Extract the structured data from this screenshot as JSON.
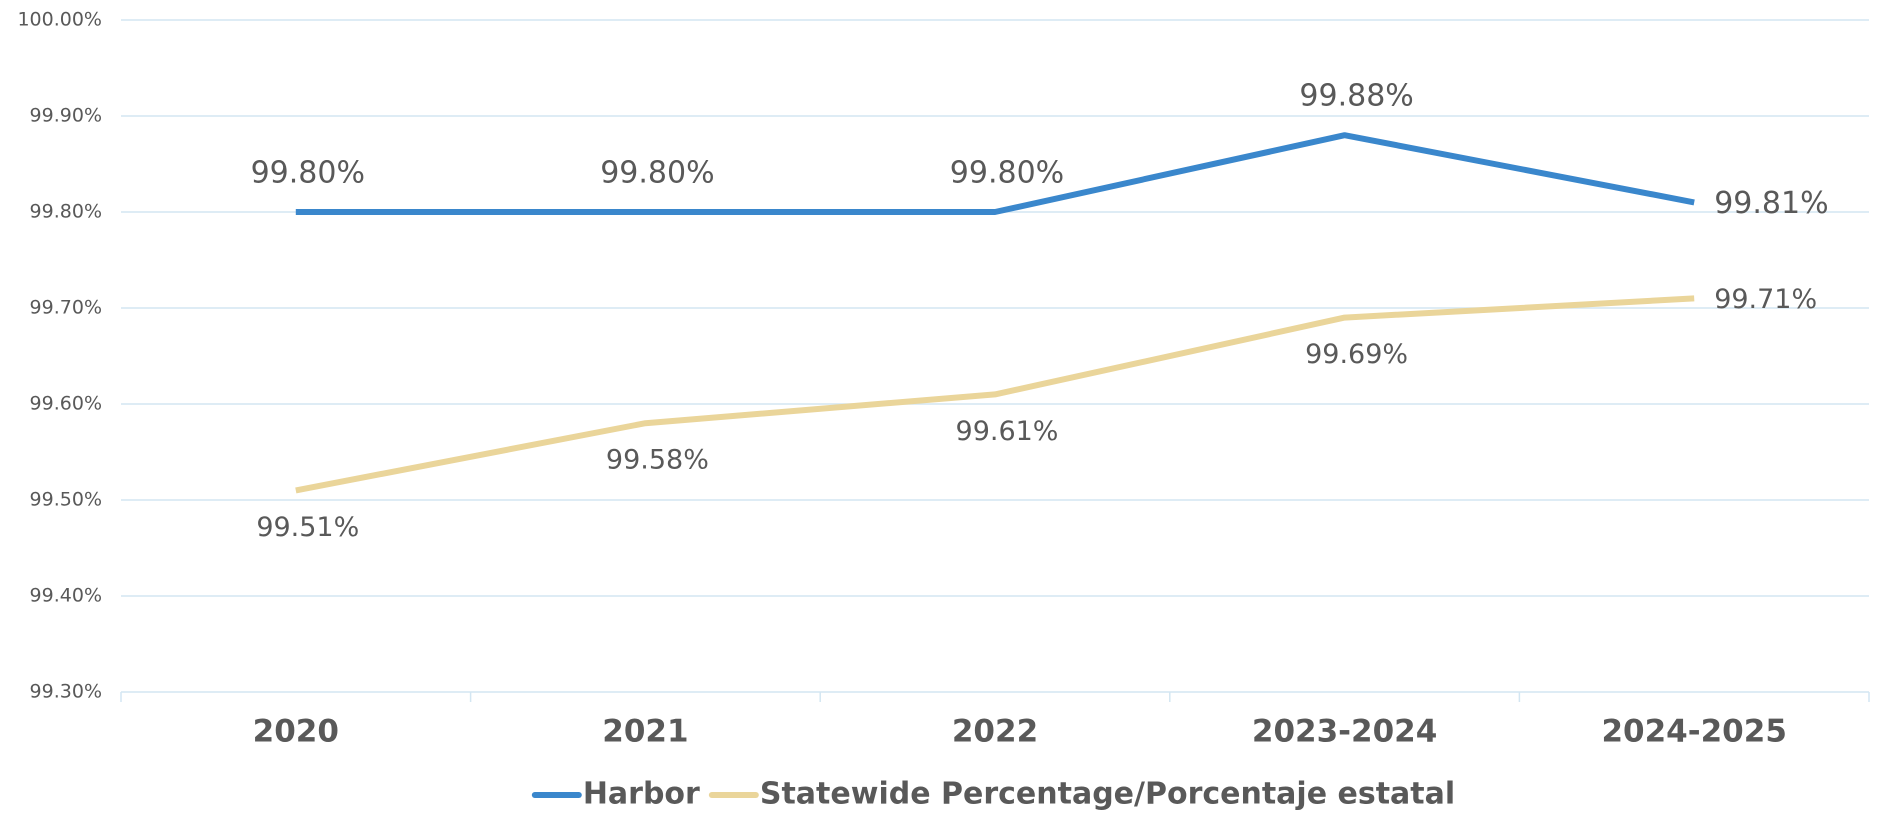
{
  "chart_data": {
    "type": "line",
    "categories": [
      "2020",
      "2021",
      "2022",
      "2023-2024",
      "2024-2025"
    ],
    "series": [
      {
        "name": "Harbor",
        "color": "#3a87cc",
        "values": [
          99.8,
          99.8,
          99.8,
          99.88,
          99.81
        ],
        "value_labels": [
          "99.80%",
          "99.80%",
          "99.80%",
          "99.88%",
          "99.81%"
        ]
      },
      {
        "name": "Statewide Percentage/Porcentaje estatal",
        "color": "#ead59a",
        "values": [
          99.51,
          99.58,
          99.61,
          99.69,
          99.71
        ],
        "value_labels": [
          "99.51%",
          "99.58%",
          "99.61%",
          "99.69%",
          "99.71%"
        ]
      }
    ],
    "ylim": [
      99.3,
      100
    ],
    "yticks": [
      {
        "value": 99.3,
        "label": "99.30%"
      },
      {
        "value": 99.4,
        "label": "99.40%"
      },
      {
        "value": 99.5,
        "label": "99.50%"
      },
      {
        "value": 99.6,
        "label": "99.60%"
      },
      {
        "value": 99.7,
        "label": "99.70%"
      },
      {
        "value": 99.8,
        "label": "99.80%"
      },
      {
        "value": 99.9,
        "label": "99.90%"
      },
      {
        "value": 100,
        "label": "100.00%"
      }
    ],
    "grid": true,
    "legend": "bottom"
  }
}
